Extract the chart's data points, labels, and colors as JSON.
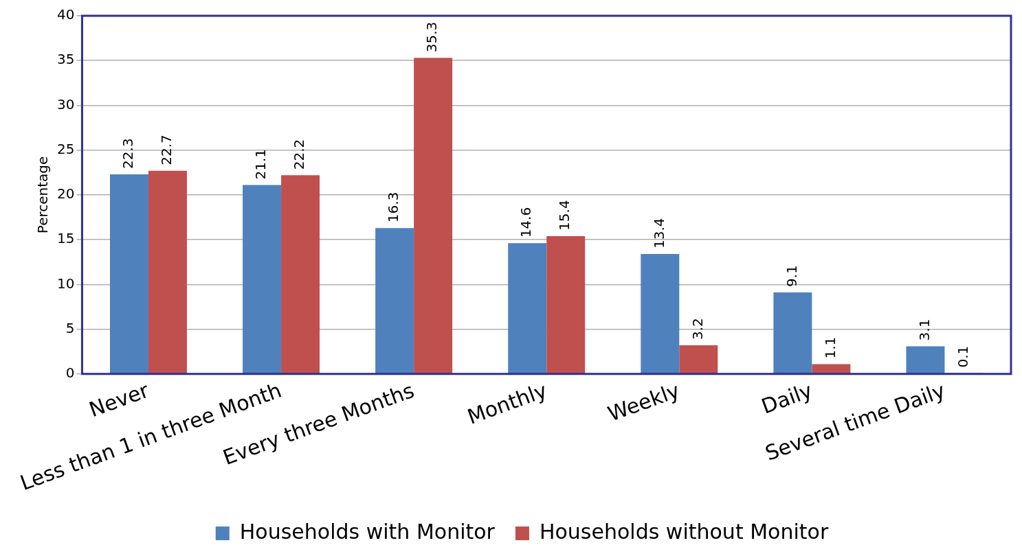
{
  "chart_data": {
    "type": "bar",
    "ylabel": "Percentage",
    "categories": [
      "Never",
      "Less than 1 in three Month",
      "Every three Months",
      "Monthly",
      "Weekly",
      "Daily",
      "Several time Daily"
    ],
    "series": [
      {
        "name": "Households with Monitor",
        "color": "#4f81bd",
        "values": [
          22.3,
          21.1,
          16.3,
          14.6,
          13.4,
          9.1,
          3.1
        ]
      },
      {
        "name": "Households without Monitor",
        "color": "#c0504d",
        "values": [
          22.7,
          22.2,
          35.3,
          15.4,
          3.2,
          1.1,
          0.1
        ]
      }
    ],
    "ylim": [
      0,
      40
    ],
    "yticks": [
      0,
      5,
      10,
      15,
      20,
      25,
      30,
      35,
      40
    ],
    "grid": "y",
    "legend": "bottom",
    "data_labels": true
  }
}
